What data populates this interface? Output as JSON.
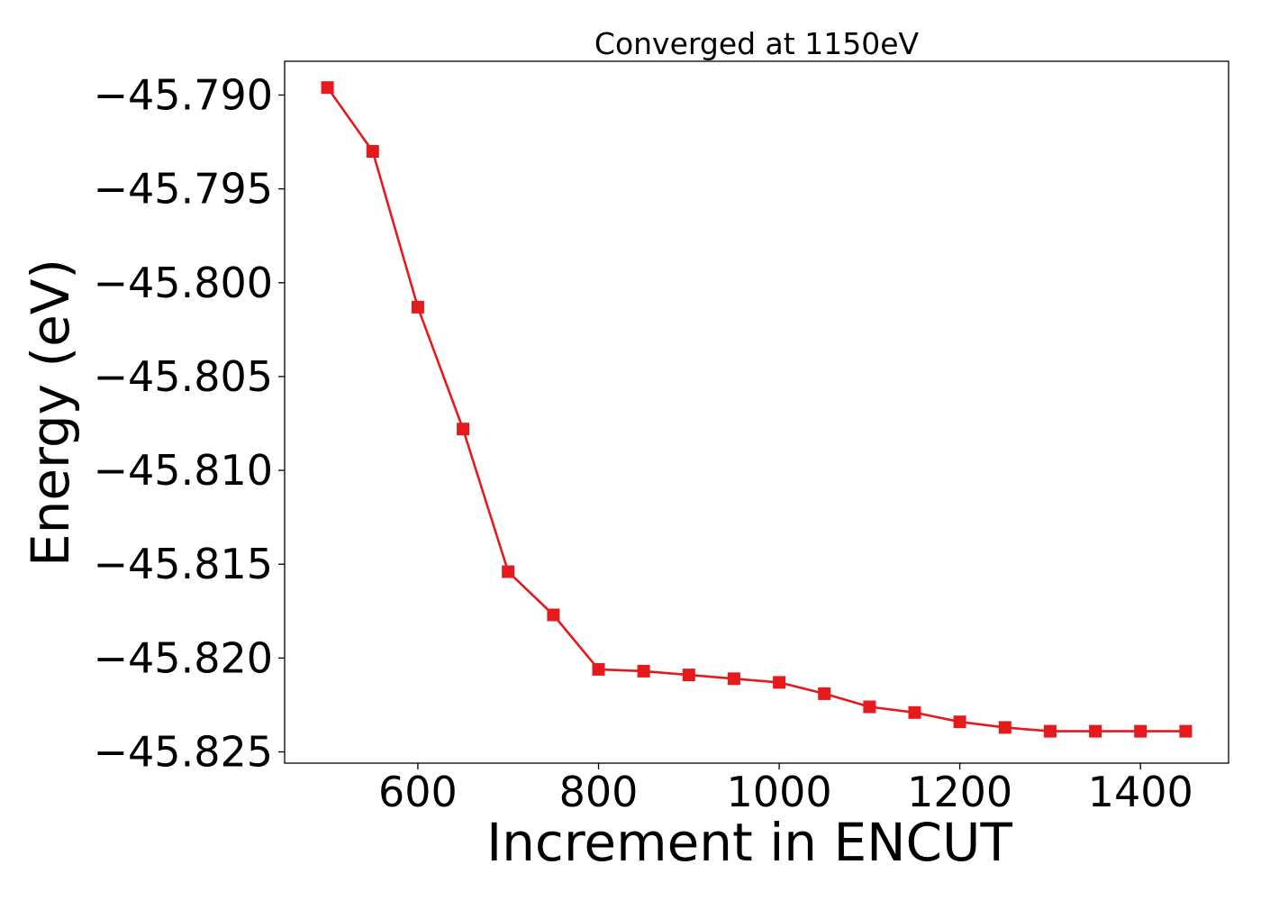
{
  "chart_data": {
    "type": "line",
    "title": "Converged at 1150eV",
    "xlabel": "Increment in ENCUT",
    "ylabel": "Energy (eV)",
    "xlim": [
      452.5,
      1497.5
    ],
    "ylim": [
      -45.8256,
      -45.7882
    ],
    "xticks": [
      600,
      800,
      1000,
      1200,
      1400
    ],
    "yticks": [
      -45.79,
      -45.795,
      -45.8,
      -45.805,
      -45.81,
      -45.815,
      -45.82,
      -45.825
    ],
    "ytick_labels": [
      "−45.790",
      "−45.795",
      "−45.800",
      "−45.805",
      "−45.810",
      "−45.815",
      "−45.820",
      "−45.825"
    ],
    "grid": false,
    "marker": "square",
    "color": "#e41a1c",
    "series": [
      {
        "x": [
          500,
          550,
          600,
          650,
          700,
          750,
          800,
          850,
          900,
          950,
          1000,
          1050,
          1100,
          1150,
          1200,
          1250,
          1300,
          1350,
          1400,
          1450
        ],
        "y": [
          -45.7896,
          -45.793,
          -45.8013,
          -45.8078,
          -45.8154,
          -45.8177,
          -45.8206,
          -45.8207,
          -45.8209,
          -45.8211,
          -45.8213,
          -45.8219,
          -45.8226,
          -45.8229,
          -45.8234,
          -45.8237,
          -45.8239,
          -45.8239,
          -45.8239,
          -45.8239
        ]
      }
    ]
  }
}
